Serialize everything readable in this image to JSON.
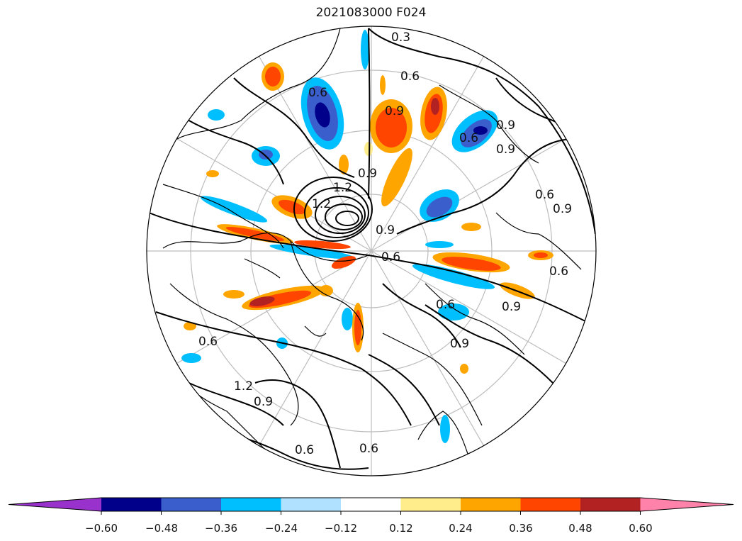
{
  "title": "2021083000 F024",
  "map": {
    "projection": "north-polar-stereographic",
    "graticule": "on",
    "coastlines": "on",
    "contour_labels": [
      "0.3",
      "0.6",
      "0.6",
      "0.9",
      "0.9",
      "0.9",
      "0.6",
      "0.6",
      "0.9",
      "0.9",
      "1.2",
      "1.2",
      "0.9",
      "0.6",
      "0.6",
      "0.9",
      "0.6",
      "0.9",
      "0.6",
      "1.2",
      "0.9",
      "0.6",
      "0.6"
    ]
  },
  "colorbar": {
    "tick_labels": [
      "−0.60",
      "−0.48",
      "−0.36",
      "−0.24",
      "−0.12",
      "0.12",
      "0.24",
      "0.36",
      "0.48",
      "0.60"
    ],
    "levels": [
      -0.6,
      -0.48,
      -0.36,
      -0.24,
      -0.12,
      0.12,
      0.24,
      0.36,
      0.48,
      0.6
    ],
    "colors": [
      "#9932cc",
      "#00008b",
      "#3a5fcd",
      "#00bfff",
      "#b0e2ff",
      "#ffffff",
      "#ffec8b",
      "#ffa500",
      "#ff4500",
      "#b22222",
      "#ff82ab"
    ],
    "extend": "both"
  }
}
